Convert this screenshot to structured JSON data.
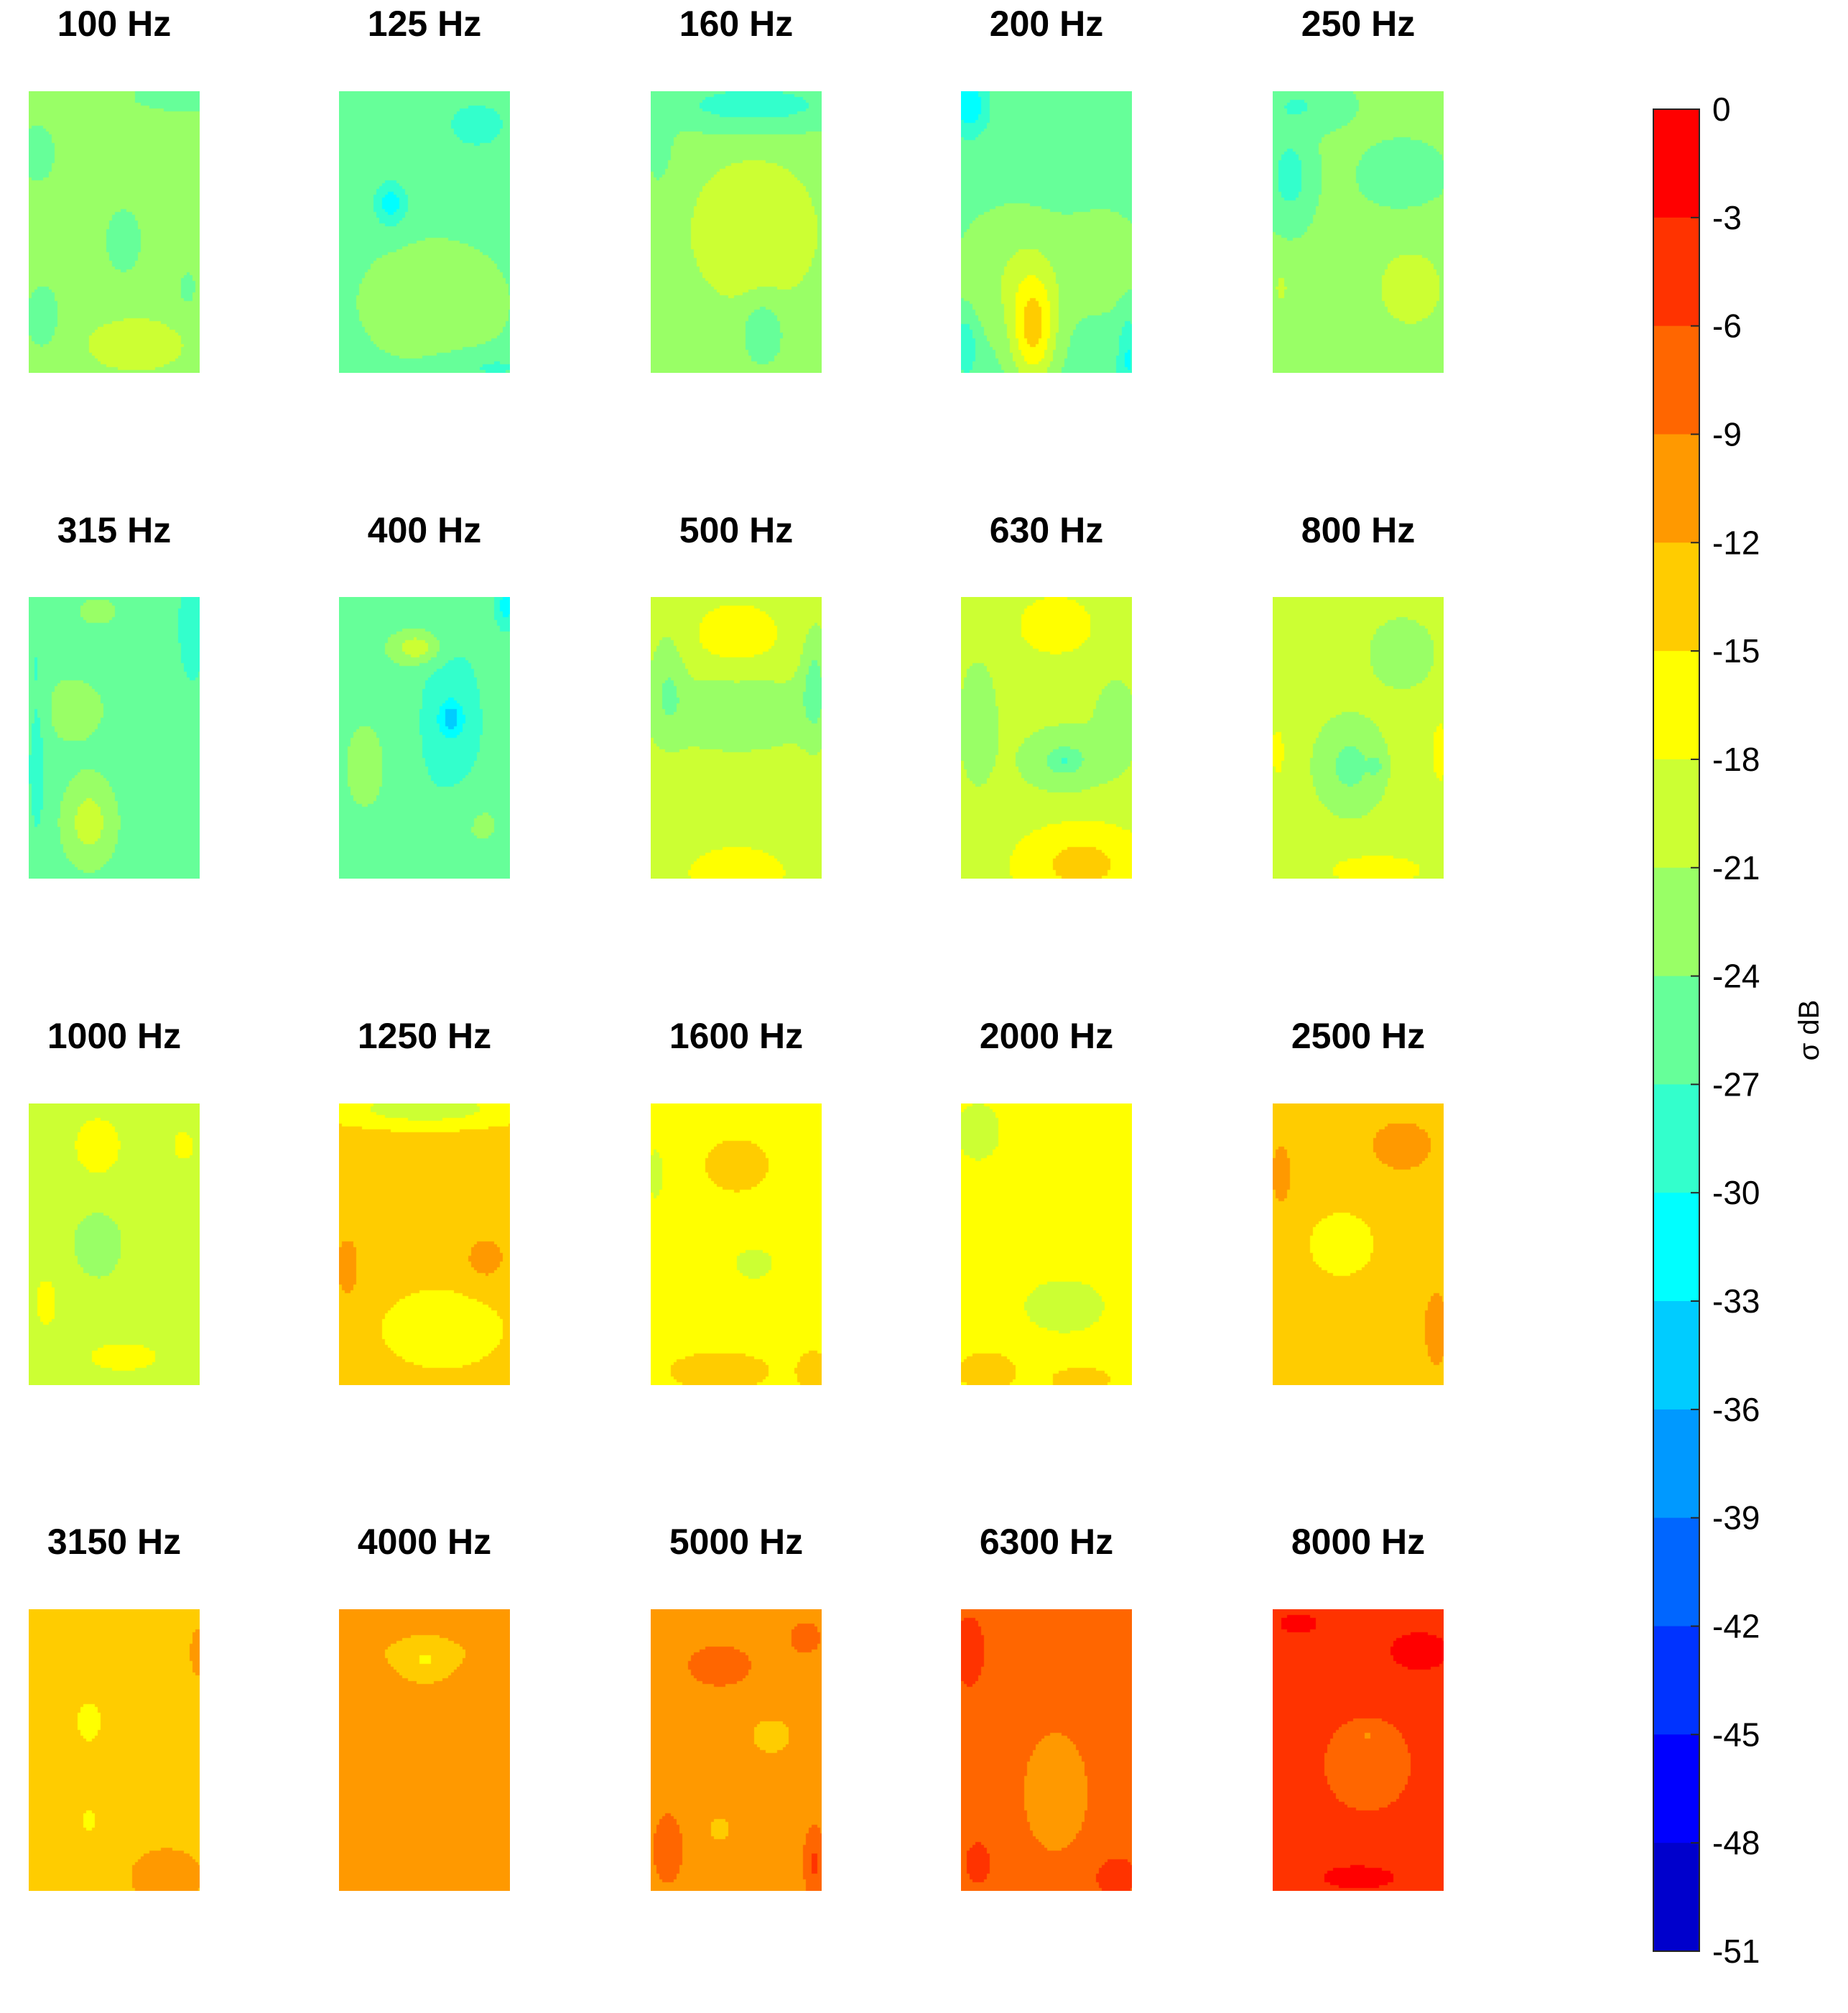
{
  "chart_data": {
    "type": "heatmap",
    "title": "",
    "colorbar": {
      "label": "σ dB",
      "range": [
        -51,
        0
      ],
      "tick_values": [
        0,
        -3,
        -6,
        -9,
        -12,
        -15,
        -18,
        -21,
        -24,
        -27,
        -30,
        -33,
        -36,
        -39,
        -42,
        -45,
        -48,
        -51
      ],
      "tick_labels": [
        "0",
        "-3",
        "-6",
        "-9",
        "-12",
        "-15",
        "-18",
        "-21",
        "-24",
        "-27",
        "-30",
        "-33",
        "-36",
        "-39",
        "-42",
        "-45",
        "-48",
        "-51"
      ],
      "level_colors": [
        "#ff0000",
        "#ff3300",
        "#ff6600",
        "#ff9900",
        "#ffcc00",
        "#ffff00",
        "#ccff33",
        "#99ff66",
        "#66ff99",
        "#33ffcc",
        "#00ffff",
        "#00ccff",
        "#0099ff",
        "#0066ff",
        "#0033ff",
        "#0000ff",
        "#0000cc"
      ]
    },
    "panels": [
      {
        "title": "100 Hz",
        "base": -22.5,
        "blobs": [
          [
            0.55,
            0.53,
            0.1,
            0.11,
            -4.0
          ],
          [
            0.62,
            0.9,
            0.3,
            0.1,
            3.5
          ],
          [
            0.08,
            0.8,
            0.1,
            0.12,
            -3.5
          ],
          [
            0.9,
            0.02,
            0.35,
            0.06,
            -3.0
          ],
          [
            0.05,
            0.22,
            0.12,
            0.12,
            -3.0
          ],
          [
            0.92,
            0.7,
            0.08,
            0.1,
            -2.0
          ]
        ]
      },
      {
        "title": "125 Hz",
        "base": -24.5,
        "blobs": [
          [
            0.3,
            0.4,
            0.1,
            0.08,
            -7.0
          ],
          [
            0.8,
            0.12,
            0.25,
            0.12,
            -3.5
          ],
          [
            0.55,
            0.75,
            0.35,
            0.18,
            2.5
          ],
          [
            0.15,
            0.1,
            0.15,
            0.1,
            -2.0
          ],
          [
            0.9,
            0.98,
            0.3,
            0.05,
            -3.0
          ]
        ]
      },
      {
        "title": "160 Hz",
        "base": -22.5,
        "blobs": [
          [
            0.6,
            0.5,
            0.35,
            0.25,
            4.5
          ],
          [
            0.6,
            0.05,
            0.6,
            0.1,
            -6.0
          ],
          [
            0.65,
            0.85,
            0.12,
            0.12,
            -4.5
          ],
          [
            0.05,
            0.2,
            0.08,
            0.15,
            -3.0
          ]
        ]
      },
      {
        "title": "200 Hz",
        "base": -25.5,
        "blobs": [
          [
            0.42,
            0.85,
            0.13,
            0.2,
            10.0
          ],
          [
            0.3,
            0.65,
            0.35,
            0.25,
            4.0
          ],
          [
            0.85,
            0.6,
            0.25,
            0.2,
            3.0
          ],
          [
            0.05,
            0.05,
            0.1,
            0.1,
            -7.0
          ],
          [
            0.97,
            0.95,
            0.06,
            0.15,
            -5.0
          ],
          [
            0.03,
            0.9,
            0.06,
            0.1,
            -5.0
          ]
        ]
      },
      {
        "title": "250 Hz",
        "base": -23.5,
        "blobs": [
          [
            0.8,
            0.7,
            0.25,
            0.18,
            4.0
          ],
          [
            0.05,
            0.7,
            0.06,
            0.08,
            3.0
          ],
          [
            0.1,
            0.3,
            0.12,
            0.15,
            -5.0
          ],
          [
            0.75,
            0.3,
            0.2,
            0.1,
            -3.0
          ],
          [
            0.15,
            0.05,
            0.25,
            0.08,
            -3.5
          ]
        ]
      },
      {
        "title": "315 Hz",
        "base": -25.5,
        "blobs": [
          [
            0.35,
            0.8,
            0.15,
            0.15,
            6.0
          ],
          [
            0.25,
            0.4,
            0.25,
            0.15,
            2.5
          ],
          [
            0.05,
            0.5,
            0.06,
            0.4,
            -3.0
          ],
          [
            0.95,
            0.1,
            0.08,
            0.2,
            -4.0
          ],
          [
            0.4,
            0.05,
            0.2,
            0.08,
            2.0
          ]
        ]
      },
      {
        "title": "400 Hz",
        "base": -25.5,
        "blobs": [
          [
            0.65,
            0.45,
            0.18,
            0.28,
            -4.0
          ],
          [
            0.65,
            0.43,
            0.06,
            0.05,
            -6.0
          ],
          [
            0.45,
            0.18,
            0.15,
            0.06,
            6.5
          ],
          [
            0.15,
            0.6,
            0.15,
            0.2,
            2.5
          ],
          [
            0.8,
            0.8,
            0.22,
            0.15,
            2.0
          ],
          [
            0.97,
            0.03,
            0.06,
            0.08,
            -6.0
          ]
        ]
      },
      {
        "title": "500 Hz",
        "base": -19.5,
        "blobs": [
          [
            0.5,
            0.15,
            0.3,
            0.15,
            3.0
          ],
          [
            0.5,
            0.4,
            0.5,
            0.15,
            -4.0
          ],
          [
            0.5,
            0.98,
            0.3,
            0.1,
            3.5
          ],
          [
            0.95,
            0.3,
            0.08,
            0.2,
            -5.0
          ],
          [
            0.1,
            0.3,
            0.1,
            0.2,
            -3.5
          ]
        ]
      },
      {
        "title": "630 Hz",
        "base": -20.0,
        "blobs": [
          [
            0.6,
            0.58,
            0.22,
            0.1,
            -5.0
          ],
          [
            0.6,
            0.58,
            0.03,
            0.02,
            -3.5
          ],
          [
            0.55,
            0.1,
            0.25,
            0.12,
            4.0
          ],
          [
            0.7,
            0.95,
            0.4,
            0.15,
            6.0
          ],
          [
            0.1,
            0.45,
            0.1,
            0.2,
            -3.5
          ],
          [
            0.9,
            0.45,
            0.12,
            0.15,
            -3.0
          ]
        ]
      },
      {
        "title": "800 Hz",
        "base": -20.0,
        "blobs": [
          [
            0.45,
            0.6,
            0.18,
            0.15,
            -5.0
          ],
          [
            0.6,
            0.6,
            0.04,
            0.03,
            -3.5
          ],
          [
            0.75,
            0.2,
            0.18,
            0.12,
            -3.0
          ],
          [
            0.97,
            0.55,
            0.05,
            0.12,
            4.0
          ],
          [
            0.03,
            0.55,
            0.05,
            0.12,
            3.0
          ],
          [
            0.6,
            0.97,
            0.4,
            0.08,
            3.0
          ]
        ]
      },
      {
        "title": "1000 Hz",
        "base": -20.0,
        "blobs": [
          [
            0.4,
            0.15,
            0.2,
            0.15,
            3.0
          ],
          [
            0.4,
            0.5,
            0.12,
            0.1,
            -4.0
          ],
          [
            0.55,
            0.9,
            0.4,
            0.1,
            2.5
          ],
          [
            0.1,
            0.7,
            0.12,
            0.15,
            2.5
          ],
          [
            0.9,
            0.15,
            0.12,
            0.1,
            2.5
          ]
        ]
      },
      {
        "title": "1250 Hz",
        "base": -14.0,
        "blobs": [
          [
            0.85,
            0.55,
            0.15,
            0.1,
            3.0
          ],
          [
            0.05,
            0.58,
            0.06,
            0.1,
            5.0
          ],
          [
            0.5,
            0.02,
            0.5,
            0.06,
            -6.0
          ],
          [
            0.6,
            0.8,
            0.3,
            0.12,
            -4.0
          ]
        ]
      },
      {
        "title": "1600 Hz",
        "base": -16.5,
        "blobs": [
          [
            0.5,
            0.22,
            0.2,
            0.1,
            3.5
          ],
          [
            0.6,
            0.57,
            0.13,
            0.06,
            -3.0
          ],
          [
            0.4,
            0.95,
            0.35,
            0.08,
            3.0
          ],
          [
            0.95,
            0.95,
            0.1,
            0.08,
            3.0
          ],
          [
            0.03,
            0.25,
            0.05,
            0.1,
            -3.0
          ]
        ]
      },
      {
        "title": "2000 Hz",
        "base": -16.5,
        "blobs": [
          [
            0.6,
            0.72,
            0.25,
            0.1,
            -3.5
          ],
          [
            0.1,
            0.1,
            0.15,
            0.12,
            -3.0
          ],
          [
            0.15,
            0.95,
            0.2,
            0.08,
            3.0
          ],
          [
            0.7,
            0.98,
            0.2,
            0.05,
            3.0
          ]
        ]
      },
      {
        "title": "2500 Hz",
        "base": -13.5,
        "blobs": [
          [
            0.75,
            0.15,
            0.2,
            0.1,
            3.0
          ],
          [
            0.05,
            0.25,
            0.06,
            0.12,
            3.0
          ],
          [
            0.4,
            0.5,
            0.2,
            0.12,
            -3.5
          ],
          [
            0.95,
            0.8,
            0.08,
            0.15,
            3.0
          ]
        ]
      },
      {
        "title": "3150 Hz",
        "base": -13.5,
        "blobs": [
          [
            0.35,
            0.4,
            0.08,
            0.08,
            -3.0
          ],
          [
            0.35,
            0.75,
            0.05,
            0.04,
            -3.0
          ],
          [
            0.8,
            0.95,
            0.25,
            0.12,
            3.0
          ],
          [
            0.98,
            0.15,
            0.05,
            0.1,
            3.0
          ]
        ]
      },
      {
        "title": "4000 Hz",
        "base": -12.0,
        "blobs": [
          [
            0.5,
            0.45,
            0.2,
            0.15,
            2.5
          ],
          [
            0.5,
            0.18,
            0.1,
            0.06,
            -3.5
          ],
          [
            0.05,
            0.3,
            0.06,
            0.2,
            3.0
          ],
          [
            0.95,
            0.15,
            0.06,
            0.15,
            3.0
          ],
          [
            0.5,
            0.02,
            0.3,
            0.05,
            3.0
          ]
        ]
      },
      {
        "title": "5000 Hz",
        "base": -10.5,
        "blobs": [
          [
            0.4,
            0.2,
            0.25,
            0.1,
            2.5
          ],
          [
            0.7,
            0.45,
            0.15,
            0.08,
            -2.5
          ],
          [
            0.1,
            0.85,
            0.1,
            0.15,
            3.0
          ],
          [
            0.95,
            0.9,
            0.06,
            0.12,
            5.0
          ],
          [
            0.4,
            0.78,
            0.06,
            0.04,
            -3.5
          ],
          [
            0.9,
            0.1,
            0.15,
            0.1,
            2.0
          ]
        ]
      },
      {
        "title": "6300 Hz",
        "base": -7.5,
        "blobs": [
          [
            0.55,
            0.65,
            0.22,
            0.25,
            -3.0
          ],
          [
            0.05,
            0.15,
            0.1,
            0.15,
            3.0
          ],
          [
            0.9,
            0.95,
            0.15,
            0.08,
            3.0
          ],
          [
            0.1,
            0.9,
            0.1,
            0.1,
            2.5
          ]
        ]
      },
      {
        "title": "8000 Hz",
        "base": -4.5,
        "blobs": [
          [
            0.55,
            0.55,
            0.3,
            0.2,
            -3.0
          ],
          [
            0.55,
            0.45,
            0.04,
            0.02,
            -3.0
          ],
          [
            0.85,
            0.15,
            0.2,
            0.08,
            3.0
          ],
          [
            0.15,
            0.05,
            0.2,
            0.06,
            2.0
          ],
          [
            0.5,
            0.95,
            0.4,
            0.08,
            2.0
          ]
        ]
      }
    ]
  }
}
